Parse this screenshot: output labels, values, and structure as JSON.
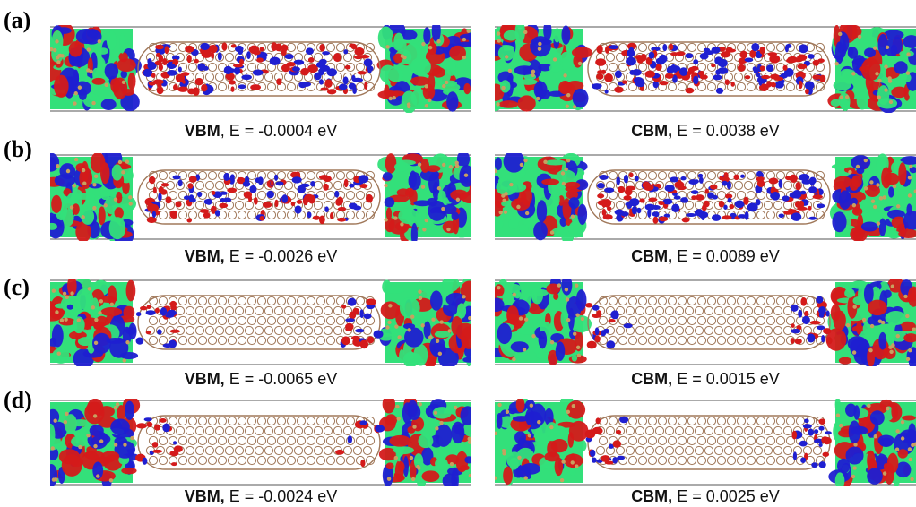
{
  "rows": [
    {
      "label": "(a)",
      "left": {
        "state": "VBM",
        "sep": ", ",
        "energy": "E = -0.0004 eV"
      },
      "right": {
        "state": "CBM,",
        "sep": " ",
        "energy": "E = 0.0038 eV"
      },
      "left_orbital": "dense",
      "right_orbital": "dense"
    },
    {
      "label": "(b)",
      "left": {
        "state": "VBM,",
        "sep": " ",
        "energy": "E = -0.0026 eV"
      },
      "right": {
        "state": "CBM,",
        "sep": " ",
        "energy": "E = 0.0089 eV"
      },
      "left_orbital": "medium",
      "right_orbital": "dense"
    },
    {
      "label": "(c)",
      "left": {
        "state": "VBM,",
        "sep": " ",
        "energy": "E = -0.0065 eV"
      },
      "right": {
        "state": "CBM,",
        "sep": " ",
        "energy": "E = 0.0015 eV"
      },
      "left_orbital": "ends",
      "right_orbital": "ends"
    },
    {
      "label": "(d)",
      "left": {
        "state": "VBM,",
        "sep": " ",
        "energy": "E = -0.0024 eV"
      },
      "right": {
        "state": "CBM,",
        "sep": " ",
        "energy": "E = 0.0025 eV"
      },
      "left_orbital": "sparse",
      "right_orbital": "ends"
    }
  ],
  "colors": {
    "isosurface_red": "#d41a1a",
    "isosurface_blue": "#1f1fd1",
    "isosurface_green": "#33e07a",
    "carbon_bond": "#a0785a",
    "atom": "#c8a060",
    "frame": "#555555"
  }
}
